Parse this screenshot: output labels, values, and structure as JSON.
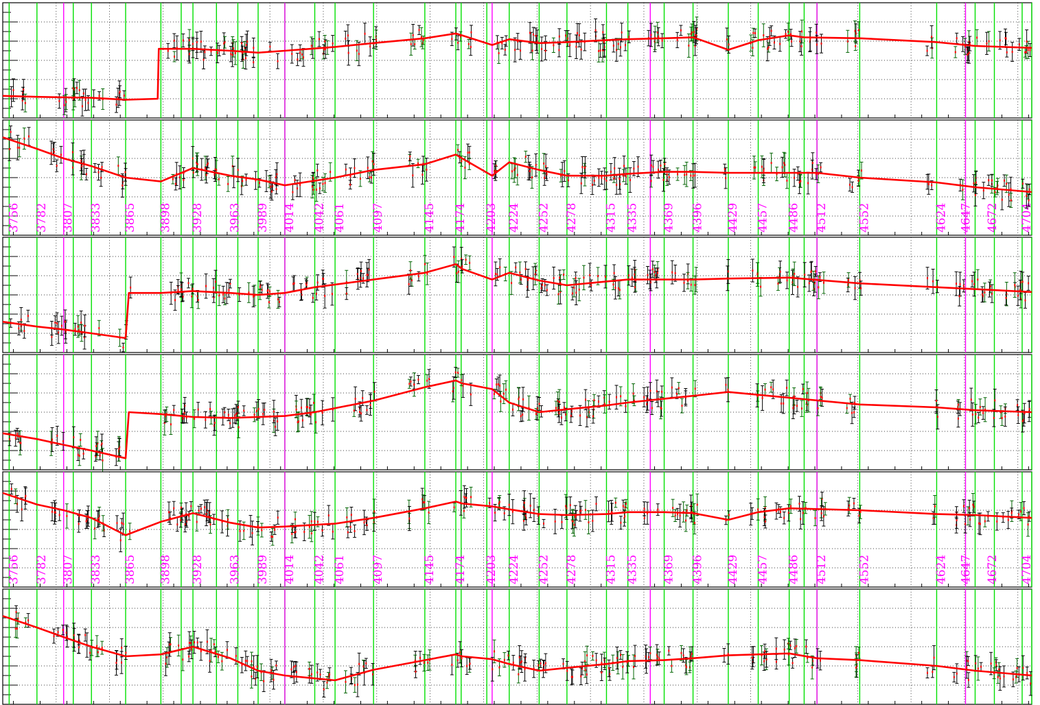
{
  "chart_data": {
    "type": "line",
    "title": "",
    "xlabel": "",
    "ylabel": "",
    "grid": true,
    "xlim": [
      3750,
      4713
    ],
    "ylim": [
      0,
      1
    ],
    "colors": {
      "fit": "#ff0000",
      "error_bar": "#000000",
      "error_bar_alt": "#006400",
      "point": "#ff0000",
      "boundary_green": "#00e000",
      "boundary_magenta": "#ff00ff",
      "label": "#ff00ff",
      "grid": "#000000",
      "frame": "#000000"
    },
    "boundaries_green": [
      3756,
      3782,
      3816,
      3833,
      3865,
      3898,
      3917,
      3928,
      3950,
      3970,
      3989,
      4014,
      4042,
      4061,
      4097,
      4145,
      4174,
      4179,
      4203,
      4224,
      4252,
      4278,
      4315,
      4335,
      4369,
      4396,
      4429,
      4457,
      4486,
      4500,
      4512,
      4552,
      4624,
      4660,
      4678,
      4704,
      4713
    ],
    "boundaries_magenta": [
      3807,
      4014,
      4208,
      4356,
      4512,
      4651
    ],
    "run_labels": [
      "3756",
      "3782",
      "3807",
      "3833",
      "3865",
      "3898",
      "3928",
      "3963",
      "3989",
      "4014",
      "4042",
      "4061",
      "4097",
      "4145",
      "4174",
      "4203",
      "4224",
      "4252",
      "4278",
      "4315",
      "4335",
      "4369",
      "4396",
      "4429",
      "4457",
      "4486",
      "4512",
      "4552",
      "4624",
      "4647",
      "4672",
      "4704"
    ],
    "label_panels": [
      1,
      4
    ],
    "panels": [
      {
        "name": "",
        "fit_x": [
          3750,
          3782,
          3807,
          3833,
          3865,
          3895,
          3896,
          3928,
          3963,
          3989,
          4014,
          4061,
          4097,
          4145,
          4174,
          4180,
          4208,
          4224,
          4252,
          4278,
          4315,
          4335,
          4369,
          4396,
          4429,
          4457,
          4486,
          4500,
          4552,
          4624,
          4660,
          4713
        ],
        "fit_y": [
          0.13,
          0.12,
          0.115,
          0.11,
          0.09,
          0.1,
          0.62,
          0.62,
          0.6,
          0.58,
          0.6,
          0.64,
          0.68,
          0.73,
          0.78,
          0.76,
          0.66,
          0.72,
          0.68,
          0.69,
          0.71,
          0.72,
          0.73,
          0.74,
          0.61,
          0.71,
          0.76,
          0.74,
          0.73,
          0.69,
          0.65,
          0.63
        ]
      },
      {
        "name": "",
        "fit_x": [
          3750,
          3782,
          3807,
          3833,
          3865,
          3898,
          3928,
          3963,
          3989,
          4014,
          4061,
          4097,
          4145,
          4174,
          4180,
          4208,
          4224,
          4252,
          4278,
          4315,
          4335,
          4369,
          4396,
          4429,
          4486,
          4512,
          4552,
          4624,
          4660,
          4713
        ],
        "fit_y": [
          0.92,
          0.8,
          0.7,
          0.62,
          0.5,
          0.46,
          0.6,
          0.52,
          0.48,
          0.42,
          0.5,
          0.58,
          0.64,
          0.74,
          0.7,
          0.52,
          0.66,
          0.58,
          0.52,
          0.52,
          0.54,
          0.56,
          0.56,
          0.55,
          0.55,
          0.55,
          0.5,
          0.45,
          0.4,
          0.35
        ]
      },
      {
        "name": "",
        "fit_x": [
          3750,
          3782,
          3807,
          3833,
          3865,
          3868,
          3898,
          3928,
          3963,
          3989,
          4014,
          4042,
          4097,
          4145,
          4174,
          4180,
          4208,
          4224,
          4252,
          4278,
          4315,
          4335,
          4369,
          4396,
          4429,
          4486,
          4552,
          4624,
          4660,
          4713
        ],
        "fit_y": [
          0.22,
          0.17,
          0.14,
          0.1,
          0.05,
          0.52,
          0.52,
          0.54,
          0.52,
          0.5,
          0.52,
          0.58,
          0.66,
          0.73,
          0.82,
          0.77,
          0.66,
          0.73,
          0.65,
          0.6,
          0.64,
          0.66,
          0.66,
          0.66,
          0.67,
          0.68,
          0.62,
          0.58,
          0.56,
          0.53
        ]
      },
      {
        "name": "",
        "fit_x": [
          3750,
          3782,
          3807,
          3833,
          3865,
          3868,
          3898,
          3928,
          3963,
          3989,
          4014,
          4042,
          4097,
          4145,
          4174,
          4180,
          4208,
          4224,
          4252,
          4278,
          4315,
          4335,
          4369,
          4396,
          4429,
          4486,
          4552,
          4624,
          4660,
          4713
        ],
        "fit_y": [
          0.28,
          0.22,
          0.16,
          0.1,
          0.02,
          0.5,
          0.48,
          0.45,
          0.44,
          0.45,
          0.46,
          0.5,
          0.62,
          0.76,
          0.83,
          0.8,
          0.74,
          0.6,
          0.5,
          0.53,
          0.57,
          0.6,
          0.64,
          0.67,
          0.71,
          0.65,
          0.58,
          0.55,
          0.52,
          0.5
        ]
      },
      {
        "name": "",
        "fit_x": [
          3750,
          3782,
          3807,
          3833,
          3865,
          3898,
          3928,
          3963,
          3989,
          4014,
          4061,
          4097,
          4145,
          4174,
          4180,
          4208,
          4224,
          4252,
          4278,
          4315,
          4335,
          4369,
          4396,
          4429,
          4457,
          4486,
          4552,
          4624,
          4660,
          4713
        ],
        "fit_y": [
          0.88,
          0.76,
          0.7,
          0.62,
          0.44,
          0.58,
          0.67,
          0.57,
          0.52,
          0.53,
          0.56,
          0.62,
          0.72,
          0.79,
          0.77,
          0.74,
          0.71,
          0.66,
          0.65,
          0.66,
          0.68,
          0.68,
          0.67,
          0.6,
          0.68,
          0.72,
          0.7,
          0.66,
          0.65,
          0.62
        ]
      },
      {
        "name": "",
        "fit_x": [
          3750,
          3782,
          3807,
          3833,
          3865,
          3898,
          3928,
          3963,
          3989,
          4014,
          4042,
          4061,
          4097,
          4145,
          4174,
          4180,
          4208,
          4224,
          4252,
          4278,
          4315,
          4335,
          4369,
          4396,
          4429,
          4486,
          4512,
          4552,
          4624,
          4660,
          4713
        ],
        "fit_y": [
          0.82,
          0.7,
          0.6,
          0.5,
          0.4,
          0.42,
          0.5,
          0.38,
          0.25,
          0.2,
          0.17,
          0.15,
          0.26,
          0.36,
          0.42,
          0.4,
          0.37,
          0.32,
          0.25,
          0.28,
          0.32,
          0.35,
          0.36,
          0.38,
          0.41,
          0.43,
          0.38,
          0.36,
          0.3,
          0.25,
          0.2
        ]
      }
    ]
  }
}
